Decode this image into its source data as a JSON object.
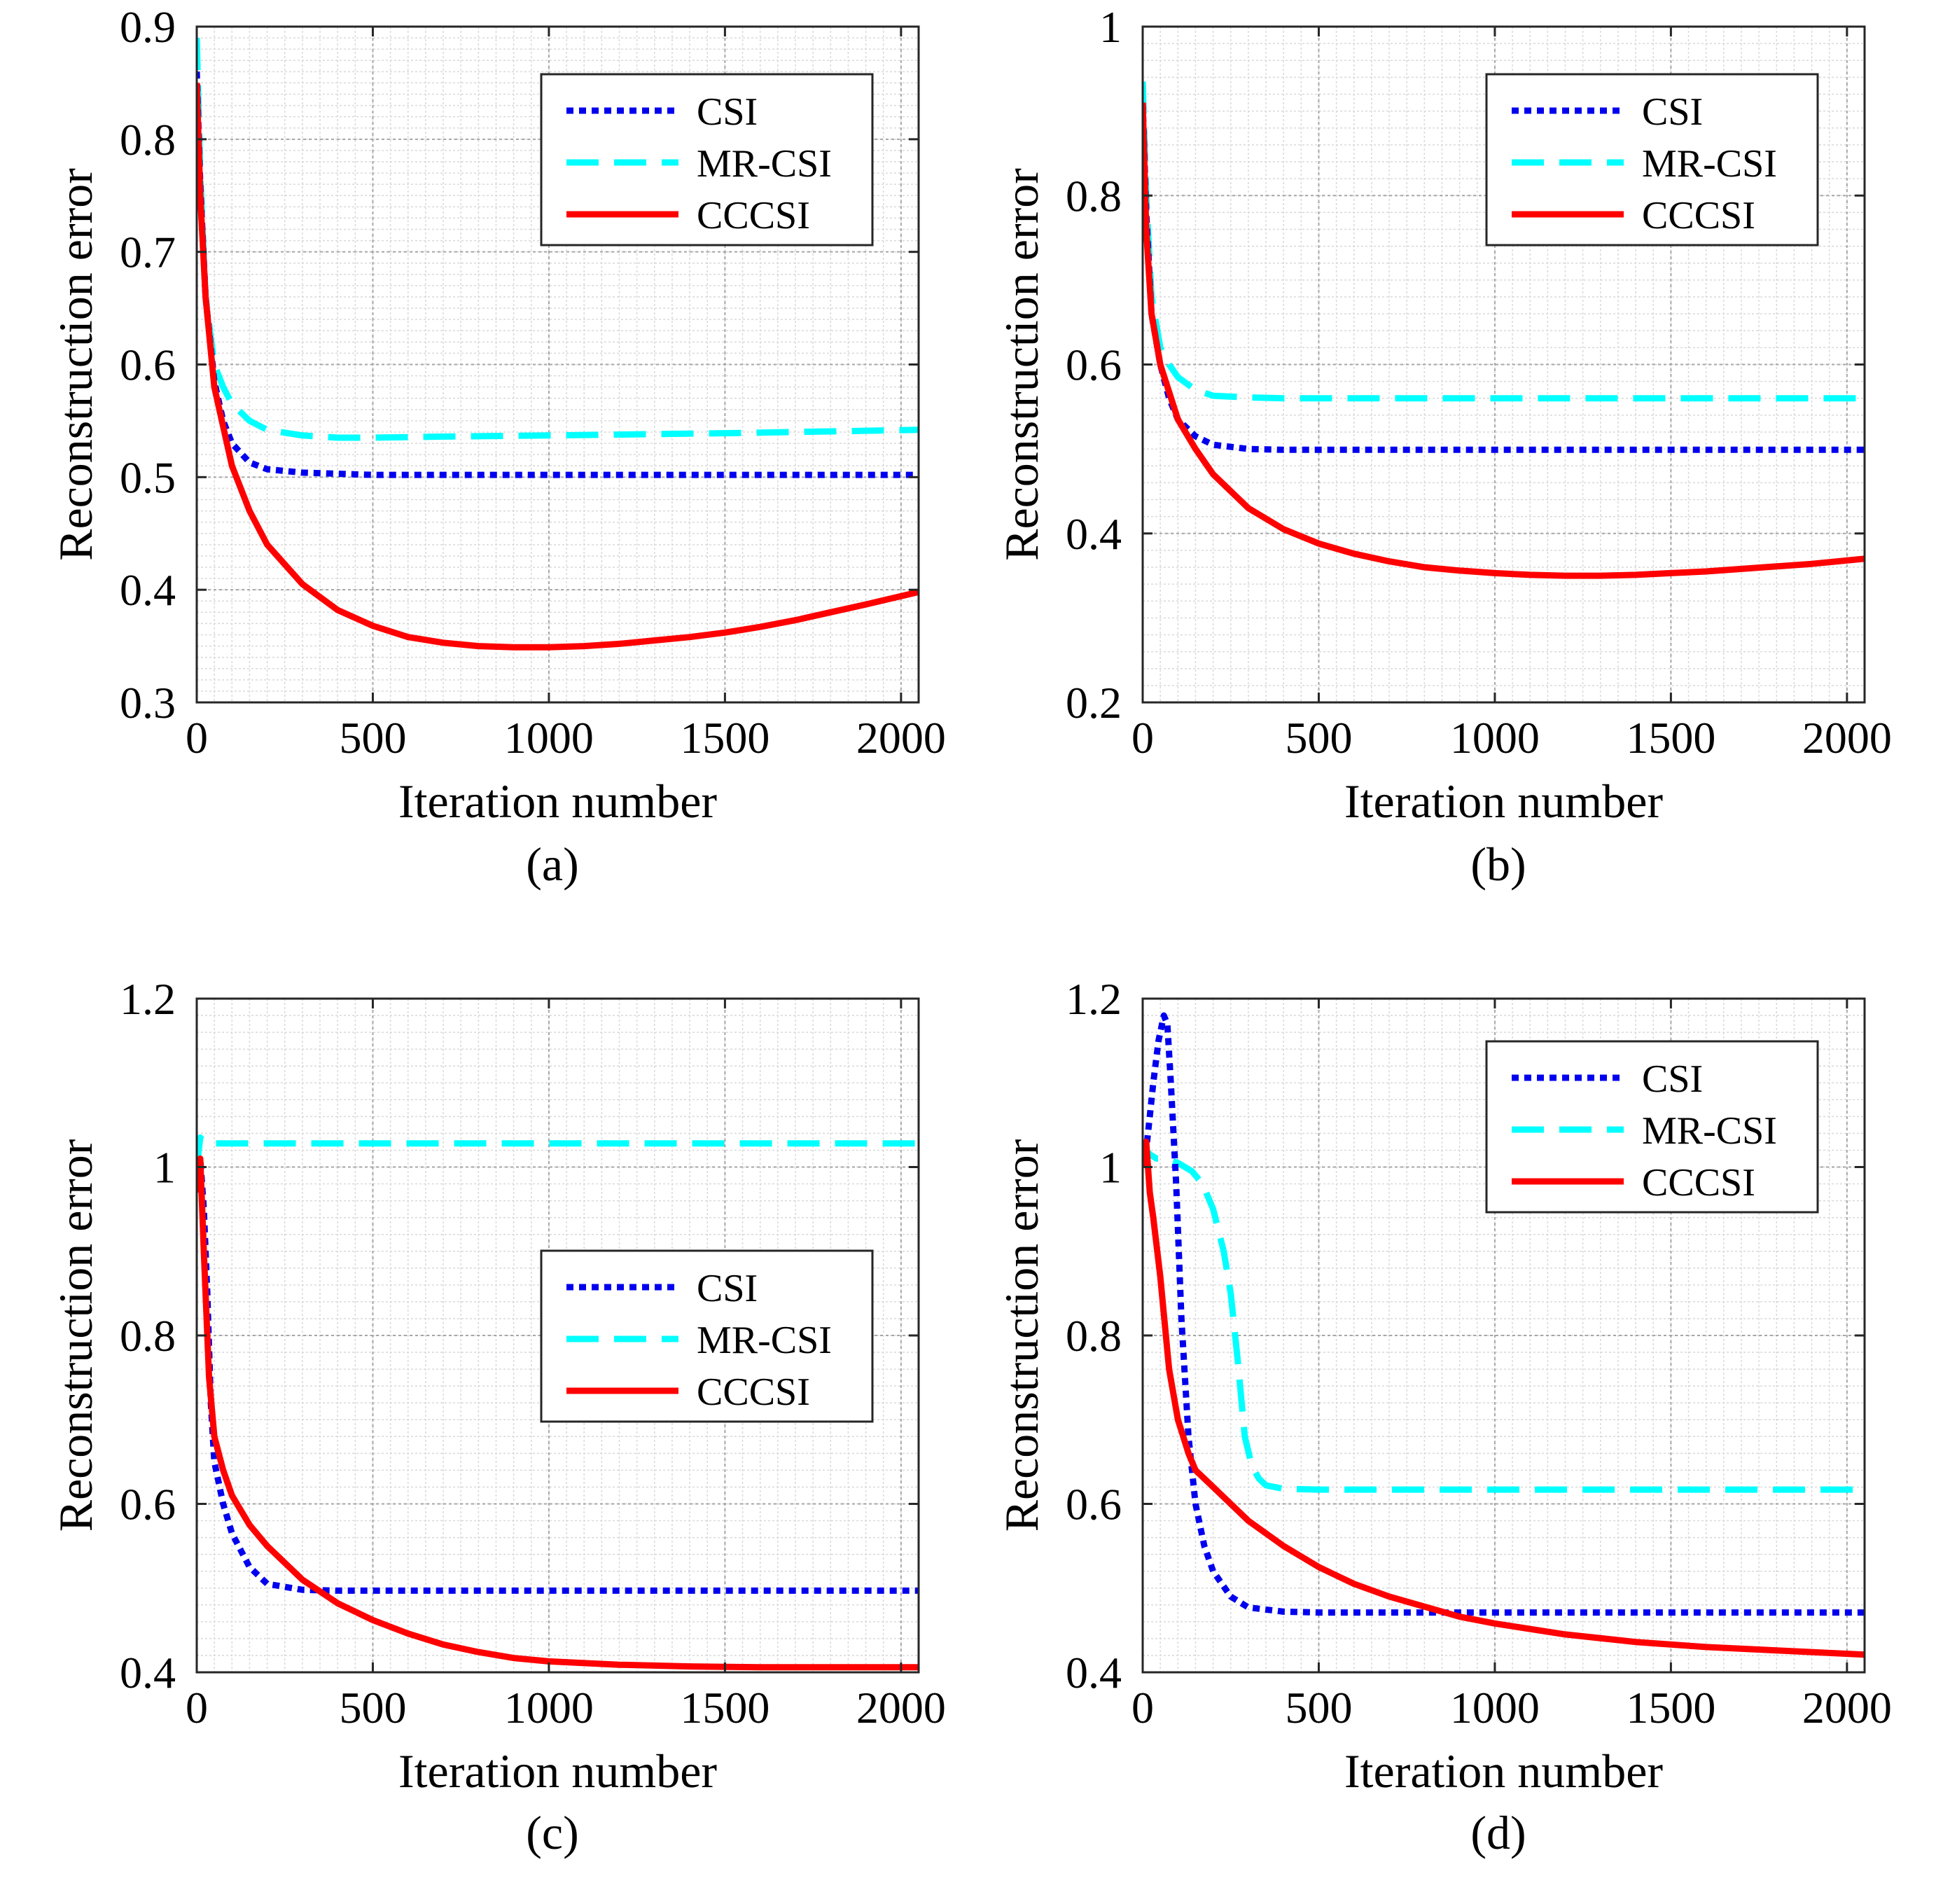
{
  "figure": {
    "legend_entries": [
      "CSI",
      "MR-CSI",
      "CCCSI"
    ],
    "series_colors": {
      "CSI": "#0000ee",
      "MR-CSI": "#00ffff",
      "CCCSI": "#ff0000"
    },
    "series_styles": {
      "CSI": "dotted",
      "MR-CSI": "dashed",
      "CCCSI": "solid"
    }
  },
  "chart_data": [
    {
      "type": "line",
      "panel_label": "(a)",
      "xlabel": "Iteration number",
      "ylabel": "Reconstruction error",
      "xlim": [
        0,
        2050
      ],
      "ylim": [
        0.3,
        0.9
      ],
      "xticks": [
        0,
        500,
        1000,
        1500,
        2000
      ],
      "xtick_labels": [
        "0",
        "500",
        "1000",
        "1500",
        "2000"
      ],
      "yticks": [
        0.3,
        0.4,
        0.5,
        0.6,
        0.7,
        0.8,
        0.9
      ],
      "ytick_labels": [
        "0.3",
        "0.4",
        "0.5",
        "0.6",
        "0.7",
        "0.8",
        "0.9"
      ],
      "grid": true,
      "legend_position": "top-right",
      "series": [
        {
          "name": "CSI",
          "x": [
            0,
            10,
            25,
            50,
            75,
            100,
            150,
            200,
            300,
            400,
            500,
            1000,
            1500,
            2050
          ],
          "y": [
            0.86,
            0.76,
            0.66,
            0.585,
            0.55,
            0.53,
            0.513,
            0.507,
            0.504,
            0.503,
            0.502,
            0.502,
            0.502,
            0.502
          ]
        },
        {
          "name": "MR-CSI",
          "x": [
            0,
            10,
            25,
            50,
            75,
            100,
            150,
            200,
            300,
            400,
            500,
            700,
            1000,
            1500,
            2050
          ],
          "y": [
            0.89,
            0.77,
            0.66,
            0.6,
            0.58,
            0.565,
            0.55,
            0.542,
            0.537,
            0.535,
            0.535,
            0.536,
            0.537,
            0.539,
            0.542
          ]
        },
        {
          "name": "CCCSI",
          "x": [
            0,
            10,
            25,
            50,
            100,
            150,
            200,
            300,
            400,
            500,
            600,
            700,
            800,
            900,
            1000,
            1100,
            1200,
            1300,
            1400,
            1500,
            1600,
            1700,
            1800,
            1900,
            2050
          ],
          "y": [
            0.85,
            0.75,
            0.66,
            0.58,
            0.51,
            0.47,
            0.44,
            0.405,
            0.382,
            0.368,
            0.358,
            0.353,
            0.35,
            0.349,
            0.349,
            0.35,
            0.352,
            0.355,
            0.358,
            0.362,
            0.367,
            0.373,
            0.38,
            0.387,
            0.398
          ]
        }
      ]
    },
    {
      "type": "line",
      "panel_label": "(b)",
      "xlabel": "Iteration number",
      "ylabel": "Reconstruction error",
      "xlim": [
        0,
        2050
      ],
      "ylim": [
        0.2,
        1.0
      ],
      "xticks": [
        0,
        500,
        1000,
        1500,
        2000
      ],
      "xtick_labels": [
        "0",
        "500",
        "1000",
        "1500",
        "2000"
      ],
      "yticks": [
        0.2,
        0.4,
        0.6,
        0.8,
        1.0
      ],
      "ytick_labels": [
        "0.2",
        "0.4",
        "0.6",
        "0.8",
        "1"
      ],
      "grid": true,
      "legend_position": "top-right",
      "series": [
        {
          "name": "CSI",
          "x": [
            0,
            10,
            25,
            50,
            75,
            100,
            150,
            200,
            300,
            400,
            600,
            1000,
            1500,
            2050
          ],
          "y": [
            0.91,
            0.78,
            0.66,
            0.6,
            0.56,
            0.535,
            0.515,
            0.505,
            0.5,
            0.499,
            0.499,
            0.499,
            0.499,
            0.499
          ]
        },
        {
          "name": "MR-CSI",
          "x": [
            0,
            10,
            25,
            50,
            75,
            100,
            150,
            200,
            300,
            400,
            600,
            1000,
            1500,
            2050
          ],
          "y": [
            0.935,
            0.8,
            0.68,
            0.62,
            0.6,
            0.585,
            0.57,
            0.563,
            0.561,
            0.56,
            0.56,
            0.56,
            0.56,
            0.56
          ]
        },
        {
          "name": "CCCSI",
          "x": [
            0,
            10,
            25,
            50,
            100,
            150,
            200,
            300,
            400,
            500,
            600,
            700,
            800,
            900,
            1000,
            1100,
            1200,
            1300,
            1400,
            1500,
            1600,
            1700,
            1800,
            1900,
            2050
          ],
          "y": [
            0.91,
            0.76,
            0.66,
            0.6,
            0.535,
            0.5,
            0.47,
            0.43,
            0.405,
            0.388,
            0.376,
            0.367,
            0.36,
            0.356,
            0.353,
            0.351,
            0.35,
            0.35,
            0.351,
            0.353,
            0.355,
            0.358,
            0.361,
            0.364,
            0.37
          ]
        }
      ]
    },
    {
      "type": "line",
      "panel_label": "(c)",
      "xlabel": "Iteration number",
      "ylabel": "Reconstruction error",
      "xlim": [
        0,
        2050
      ],
      "ylim": [
        0.4,
        1.2
      ],
      "xticks": [
        0,
        500,
        1000,
        1500,
        2000
      ],
      "xtick_labels": [
        "0",
        "500",
        "1000",
        "1500",
        "2000"
      ],
      "yticks": [
        0.4,
        0.6,
        0.8,
        1.0,
        1.2
      ],
      "ytick_labels": [
        "0.4",
        "0.6",
        "0.8",
        "1",
        "1.2"
      ],
      "grid": true,
      "legend_position": "center-right",
      "series": [
        {
          "name": "CSI",
          "x": [
            0,
            10,
            20,
            30,
            40,
            50,
            75,
            100,
            150,
            200,
            300,
            400,
            600,
            1000,
            1500,
            2050
          ],
          "y": [
            0.97,
            1.01,
            0.95,
            0.85,
            0.72,
            0.65,
            0.6,
            0.565,
            0.525,
            0.505,
            0.498,
            0.497,
            0.497,
            0.497,
            0.497,
            0.497
          ]
        },
        {
          "name": "MR-CSI",
          "x": [
            0,
            10,
            20,
            40,
            60,
            100,
            500,
            1000,
            1500,
            2050
          ],
          "y": [
            1.0,
            1.035,
            1.03,
            1.028,
            1.028,
            1.028,
            1.028,
            1.028,
            1.028,
            1.028
          ]
        },
        {
          "name": "CCCSI",
          "x": [
            0,
            10,
            20,
            35,
            50,
            75,
            100,
            150,
            200,
            300,
            400,
            500,
            600,
            700,
            800,
            900,
            1000,
            1200,
            1400,
            1600,
            1800,
            2050
          ],
          "y": [
            0.97,
            1.01,
            0.9,
            0.75,
            0.68,
            0.64,
            0.61,
            0.575,
            0.55,
            0.51,
            0.482,
            0.462,
            0.446,
            0.433,
            0.424,
            0.417,
            0.413,
            0.409,
            0.407,
            0.406,
            0.406,
            0.406
          ]
        }
      ]
    },
    {
      "type": "line",
      "panel_label": "(d)",
      "xlabel": "Iteration number",
      "ylabel": "Reconstruction error",
      "xlim": [
        0,
        2050
      ],
      "ylim": [
        0.4,
        1.2
      ],
      "xticks": [
        0,
        500,
        1000,
        1500,
        2000
      ],
      "xtick_labels": [
        "0",
        "500",
        "1000",
        "1500",
        "2000"
      ],
      "yticks": [
        0.4,
        0.6,
        0.8,
        1.0,
        1.2
      ],
      "ytick_labels": [
        "0.4",
        "0.6",
        "0.8",
        "1",
        "1.2"
      ],
      "grid": true,
      "legend_position": "top-right",
      "series": [
        {
          "name": "CSI",
          "x": [
            0,
            10,
            20,
            30,
            45,
            60,
            70,
            80,
            95,
            110,
            130,
            150,
            175,
            200,
            250,
            300,
            400,
            500,
            1000,
            1500,
            2050
          ],
          "y": [
            1.0,
            1.02,
            1.06,
            1.1,
            1.15,
            1.18,
            1.17,
            1.1,
            0.98,
            0.82,
            0.68,
            0.6,
            0.55,
            0.52,
            0.49,
            0.477,
            0.472,
            0.471,
            0.471,
            0.471,
            0.471
          ]
        },
        {
          "name": "MR-CSI",
          "x": [
            0,
            10,
            20,
            40,
            60,
            100,
            140,
            170,
            200,
            230,
            250,
            270,
            290,
            310,
            330,
            350,
            400,
            500,
            1000,
            1500,
            2050
          ],
          "y": [
            1.0,
            1.02,
            1.015,
            1.01,
            1.01,
            1.005,
            0.995,
            0.98,
            0.95,
            0.9,
            0.85,
            0.77,
            0.68,
            0.645,
            0.63,
            0.622,
            0.618,
            0.617,
            0.617,
            0.617,
            0.617
          ]
        },
        {
          "name": "CCCSI",
          "x": [
            0,
            10,
            20,
            30,
            50,
            75,
            100,
            130,
            150,
            200,
            300,
            400,
            500,
            600,
            700,
            800,
            900,
            1000,
            1200,
            1400,
            1600,
            1800,
            2050
          ],
          "y": [
            1.0,
            1.03,
            0.97,
            0.94,
            0.87,
            0.76,
            0.7,
            0.66,
            0.64,
            0.62,
            0.58,
            0.55,
            0.525,
            0.505,
            0.49,
            0.478,
            0.466,
            0.458,
            0.445,
            0.436,
            0.43,
            0.426,
            0.421
          ]
        }
      ]
    }
  ]
}
